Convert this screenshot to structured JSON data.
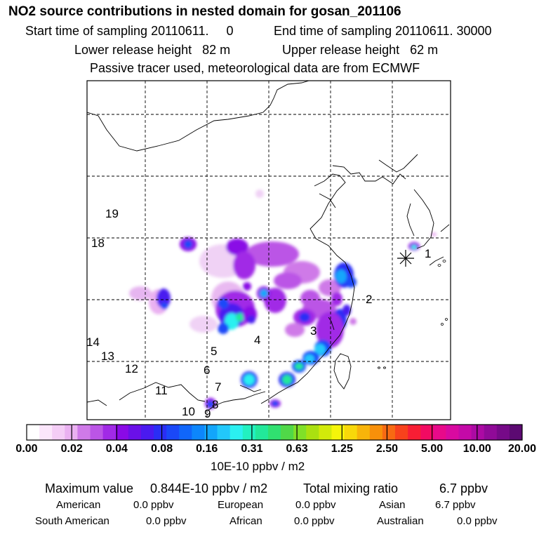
{
  "header": {
    "title": "NO2 source contributions in nested domain for gosan_201106",
    "start_sampling": "Start time of sampling 20110611.     0",
    "end_sampling": "End time of sampling 20110611. 30000",
    "lower_release": "Lower release height   82 m",
    "upper_release": "Upper release height   62 m",
    "tracer_note": "Passive tracer used, meteorological data are from ECMWF"
  },
  "chart_data": {
    "type": "heatmap",
    "title": "NO2 source contributions in nested domain for gosan_201106",
    "colorbar": {
      "unit": "10E-10 ppbv / m2",
      "tick_labels": [
        "0.00",
        "0.02",
        "0.04",
        "0.08",
        "0.16",
        "0.31",
        "0.63",
        "1.25",
        "2.50",
        "5.00",
        "10.00",
        "20.00"
      ],
      "colors": [
        "#ffffff",
        "#fbe6fb",
        "#f4cdf6",
        "#eab1f1",
        "#cf7ae8",
        "#bb55e6",
        "#a12ae6",
        "#8a0ae6",
        "#6a10e8",
        "#4a1af0",
        "#2a2ef5",
        "#1a48f8",
        "#1066fa",
        "#0d86fb",
        "#12a6fb",
        "#22c8fb",
        "#2bf0f0",
        "#22f0c0",
        "#22e89a",
        "#30e070",
        "#50d848",
        "#80e028",
        "#aae010",
        "#d2ea0a",
        "#f5f50a",
        "#f8d80a",
        "#f8b40a",
        "#f8900a",
        "#f86a12",
        "#f8421c",
        "#f81e34",
        "#f20a62",
        "#e80a8a",
        "#d80aa0",
        "#c40aa8",
        "#ac0aa4",
        "#900a98",
        "#760a88",
        "#5c0a72"
      ]
    },
    "regions": [
      {
        "label": "1"
      },
      {
        "label": "2"
      },
      {
        "label": "3"
      },
      {
        "label": "4"
      },
      {
        "label": "5"
      },
      {
        "label": "6"
      },
      {
        "label": "7"
      },
      {
        "label": "8"
      },
      {
        "label": "9"
      },
      {
        "label": "10"
      },
      {
        "label": "11"
      },
      {
        "label": "12"
      },
      {
        "label": "13"
      },
      {
        "label": "14"
      },
      {
        "label": "18"
      },
      {
        "label": "19"
      }
    ],
    "receptor": "gosan",
    "grid": true
  },
  "summary": {
    "max_label": "Maximum value",
    "max_value": "0.844E-10 ppbv / m2",
    "total_label": "Total mixing ratio",
    "total_value": "6.7 ppbv",
    "regions": [
      {
        "name": "American",
        "value": "0.0 ppbv"
      },
      {
        "name": "European",
        "value": "0.0 ppbv"
      },
      {
        "name": "Asian",
        "value": "6.7 ppbv"
      },
      {
        "name": "South American",
        "value": "0.0 ppbv"
      },
      {
        "name": "African",
        "value": "0.0 ppbv"
      },
      {
        "name": "Australian",
        "value": "0.0 ppbv"
      }
    ]
  }
}
